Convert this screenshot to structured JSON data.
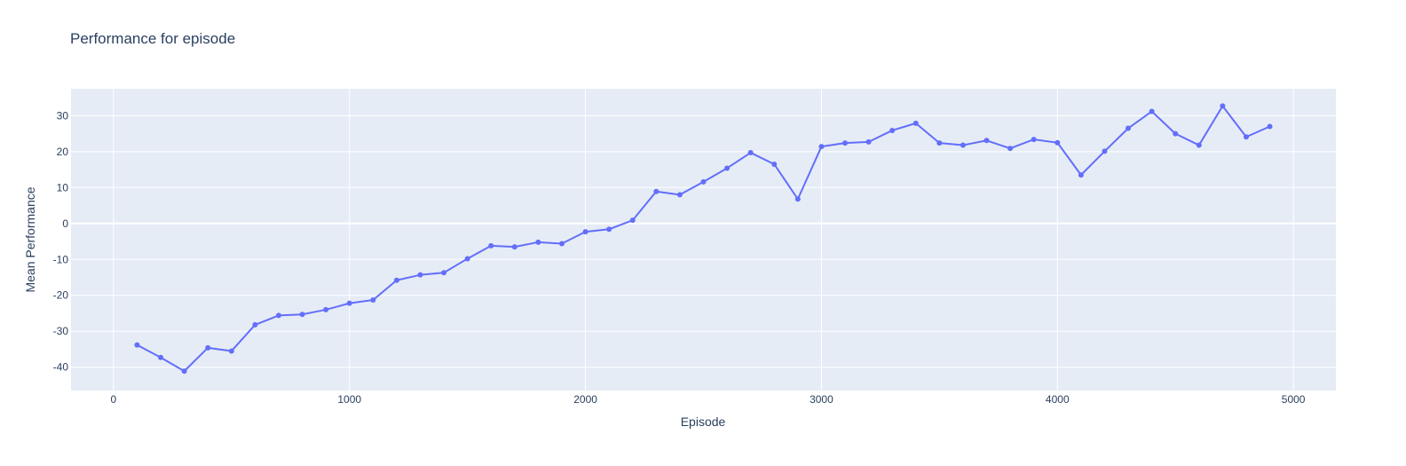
{
  "chart_data": {
    "type": "line",
    "mode": "lines+markers",
    "title": "Performance for episode",
    "xlabel": "Episode",
    "ylabel": "Mean Performance",
    "xlim": [
      -180,
      5180
    ],
    "ylim": [
      -46.5,
      37.5
    ],
    "xticks": [
      0,
      1000,
      2000,
      3000,
      4000,
      5000
    ],
    "yticks": [
      -40,
      -30,
      -20,
      -10,
      0,
      10,
      20,
      30
    ],
    "grid": true,
    "legend": "none",
    "colors": {
      "line": "#636efa",
      "plot_bg": "#e5ecf6",
      "grid": "#ffffff",
      "text": "#2a3f5f"
    },
    "series": [
      {
        "x": [
          100,
          200,
          300,
          400,
          500,
          600,
          700,
          800,
          900,
          1000,
          1100,
          1200,
          1300,
          1400,
          1500,
          1600,
          1700,
          1800,
          1900,
          2000,
          2100,
          2200,
          2300,
          2400,
          2500,
          2600,
          2700,
          2800,
          2900,
          3000,
          3100,
          3200,
          3300,
          3400,
          3500,
          3600,
          3700,
          3800,
          3900,
          4000,
          4100,
          4200,
          4300,
          4400,
          4500,
          4600,
          4700,
          4800,
          4900
        ],
        "y": [
          -33.8,
          -37.3,
          -41.1,
          -34.6,
          -35.5,
          -28.2,
          -25.6,
          -25.3,
          -24,
          -22.2,
          -21.3,
          -15.8,
          -14.3,
          -13.7,
          -9.8,
          -6.2,
          -6.5,
          -5.2,
          -5.6,
          -2.3,
          -1.6,
          0.9,
          8.9,
          8,
          11.6,
          15.4,
          19.7,
          16.5,
          6.8,
          21.4,
          22.4,
          22.7,
          25.9,
          27.9,
          22.4,
          21.8,
          23.1,
          20.9,
          23.4,
          22.5,
          13.5,
          20.1,
          26.5,
          31.2,
          25,
          21.8,
          32.7,
          24.1,
          27
        ]
      }
    ]
  }
}
